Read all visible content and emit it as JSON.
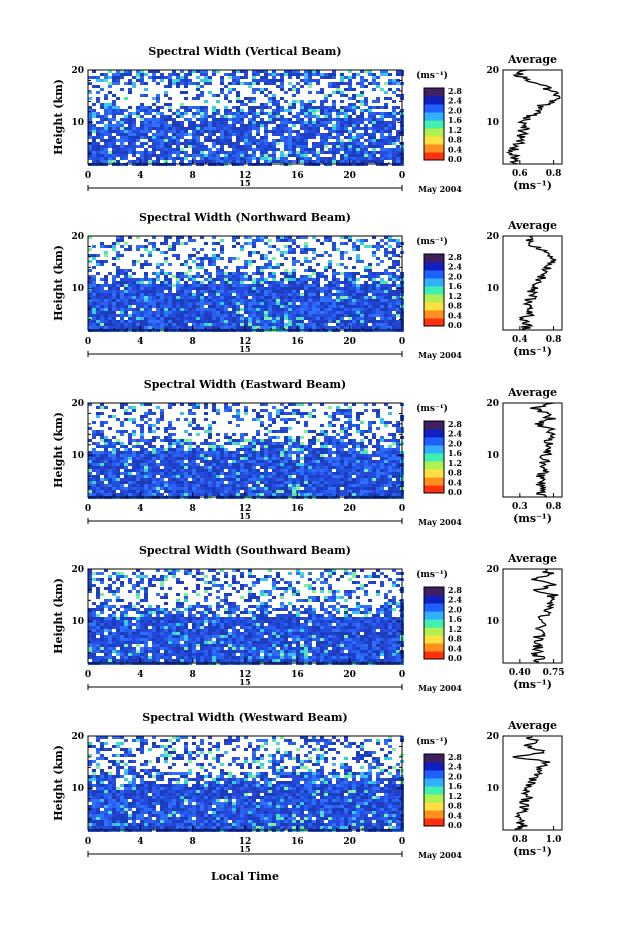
{
  "colorbar": {
    "unit": "(ms⁻¹)",
    "ticks": [
      "2.8",
      "2.4",
      "2.0",
      "1.6",
      "1.2",
      "0.8",
      "0.4",
      "0.0"
    ],
    "colors": [
      "#ff3010",
      "#ff9020",
      "#ffe040",
      "#b0f050",
      "#40f0b0",
      "#30b0ff",
      "#2060ff",
      "#1020c0",
      "#402060"
    ]
  },
  "shared": {
    "ylabel": "Height (km)",
    "xticks": [
      "0",
      "4",
      "8",
      "12",
      "16",
      "20",
      "0"
    ],
    "day": "15",
    "month": "May 2004",
    "avg_title": "Average",
    "avg_unit": "(ms⁻¹)",
    "ylim": [
      2,
      20
    ],
    "yticks": [
      "20",
      "10"
    ],
    "xlabel": "Local Time",
    "colors": {
      "data_high": "#ffffff",
      "data_low": "#2a50e0",
      "line": "#000000"
    }
  },
  "panels": [
    {
      "title": "Spectral Width (Vertical Beam)",
      "avg_xticks": [
        "0.6",
        "0.8"
      ]
    },
    {
      "title": "Spectral Width (Northward Beam)",
      "avg_xticks": [
        "0.4",
        "0.8"
      ]
    },
    {
      "title": "Spectral Width (Eastward Beam)",
      "avg_xticks": [
        "0.3",
        "0.8"
      ]
    },
    {
      "title": "Spectral Width (Southward Beam)",
      "avg_xticks": [
        "0.40",
        "0.75"
      ]
    },
    {
      "title": "Spectral Width (Westward Beam)",
      "avg_xticks": [
        "0.8",
        "1.0"
      ]
    }
  ],
  "chart_data": {
    "type": "heatmap",
    "x": "Local Time (h, 15 May 2004, 0–24)",
    "ylabel": "Height (km)",
    "ylim": [
      2,
      20
    ],
    "xlim": [
      0,
      24
    ],
    "z_range": [
      0.0,
      2.8
    ],
    "height_km": [
      2,
      3,
      4,
      5,
      6,
      7,
      8,
      9,
      10,
      11,
      12,
      13,
      14,
      15,
      16,
      17,
      18,
      19,
      20
    ],
    "average_profiles": [
      {
        "beam": "Vertical",
        "values": [
          0.55,
          0.58,
          0.56,
          0.57,
          0.6,
          0.62,
          0.61,
          0.63,
          0.62,
          0.66,
          0.7,
          0.72,
          0.8,
          0.84,
          0.78,
          0.76,
          0.66,
          0.6,
          0.62
        ]
      },
      {
        "beam": "Northward",
        "values": [
          0.45,
          0.48,
          0.46,
          0.5,
          0.52,
          0.5,
          0.53,
          0.56,
          0.55,
          0.6,
          0.65,
          0.68,
          0.72,
          0.8,
          0.75,
          0.72,
          0.55,
          0.5,
          0.52
        ]
      },
      {
        "beam": "Eastward",
        "values": [
          0.62,
          0.64,
          0.6,
          0.63,
          0.61,
          0.64,
          0.66,
          0.65,
          0.68,
          0.7,
          0.72,
          0.74,
          0.76,
          0.78,
          0.55,
          0.75,
          0.7,
          0.5,
          0.72
        ]
      },
      {
        "beam": "Southward",
        "values": [
          0.58,
          0.6,
          0.57,
          0.59,
          0.56,
          0.6,
          0.62,
          0.61,
          0.63,
          0.65,
          0.68,
          0.7,
          0.72,
          0.74,
          0.58,
          0.76,
          0.5,
          0.72,
          0.62
        ]
      },
      {
        "beam": "Westward",
        "values": [
          0.8,
          0.82,
          0.79,
          0.81,
          0.83,
          0.82,
          0.84,
          0.85,
          0.86,
          0.87,
          0.89,
          0.9,
          0.92,
          0.95,
          0.78,
          0.95,
          0.84,
          0.9,
          0.85
        ]
      }
    ]
  }
}
